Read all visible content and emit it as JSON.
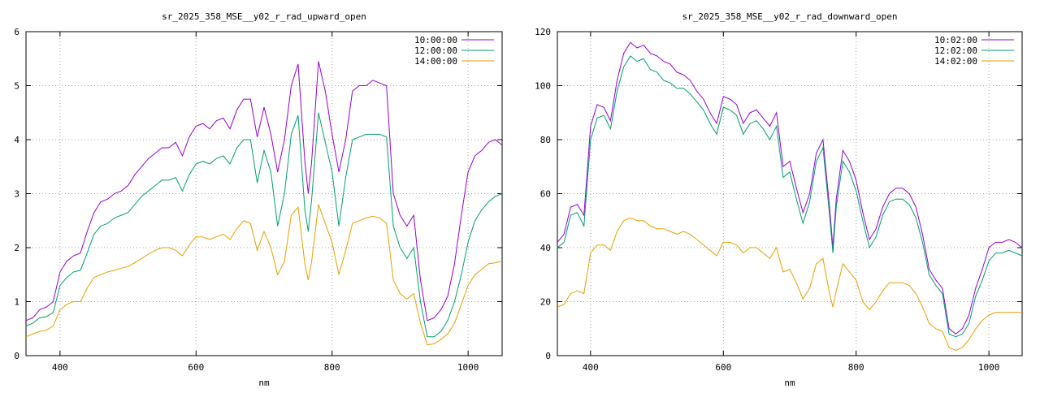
{
  "chart_data": [
    {
      "type": "line",
      "title": "sr_2025_358_MSE__y02_r_rad_upward_open",
      "xlabel": "nm",
      "ylabel": "",
      "xlim": [
        350,
        1050
      ],
      "ylim": [
        0,
        6
      ],
      "xticks": [
        400,
        600,
        800,
        1000
      ],
      "yticks": [
        0,
        1,
        2,
        3,
        4,
        5,
        6
      ],
      "grid": true,
      "legend": "top-right",
      "x": [
        350,
        360,
        370,
        380,
        390,
        400,
        410,
        420,
        430,
        440,
        450,
        460,
        470,
        480,
        490,
        500,
        510,
        520,
        530,
        540,
        550,
        560,
        570,
        580,
        590,
        600,
        610,
        620,
        630,
        640,
        650,
        660,
        670,
        680,
        690,
        700,
        710,
        720,
        730,
        740,
        750,
        760,
        765,
        770,
        780,
        790,
        800,
        810,
        820,
        830,
        840,
        850,
        860,
        870,
        880,
        890,
        900,
        910,
        920,
        930,
        940,
        950,
        960,
        970,
        980,
        990,
        1000,
        1010,
        1020,
        1030,
        1040,
        1050
      ],
      "series": [
        {
          "name": "10:00:00",
          "color": "#9400d3",
          "values": [
            0.65,
            0.7,
            0.85,
            0.9,
            1.0,
            1.55,
            1.75,
            1.85,
            1.9,
            2.3,
            2.65,
            2.85,
            2.9,
            3.0,
            3.05,
            3.15,
            3.35,
            3.5,
            3.65,
            3.75,
            3.85,
            3.85,
            3.95,
            3.7,
            4.05,
            4.25,
            4.3,
            4.2,
            4.35,
            4.4,
            4.2,
            4.55,
            4.75,
            4.75,
            4.05,
            4.6,
            4.1,
            3.4,
            4.0,
            5.0,
            5.4,
            3.6,
            3.0,
            3.6,
            5.45,
            4.9,
            4.1,
            3.4,
            4.0,
            4.9,
            5.0,
            5.0,
            5.1,
            5.05,
            5.0,
            3.0,
            2.6,
            2.4,
            2.6,
            1.4,
            0.65,
            0.7,
            0.85,
            1.1,
            1.7,
            2.6,
            3.4,
            3.7,
            3.8,
            3.95,
            4.0,
            3.9
          ]
        },
        {
          "name": "12:00:00",
          "color": "#009e73",
          "values": [
            0.55,
            0.6,
            0.7,
            0.72,
            0.8,
            1.3,
            1.45,
            1.55,
            1.58,
            1.9,
            2.25,
            2.4,
            2.45,
            2.55,
            2.6,
            2.65,
            2.8,
            2.95,
            3.05,
            3.15,
            3.25,
            3.25,
            3.3,
            3.05,
            3.35,
            3.55,
            3.6,
            3.55,
            3.65,
            3.7,
            3.55,
            3.85,
            4.0,
            4.0,
            3.2,
            3.8,
            3.4,
            2.4,
            3.0,
            4.1,
            4.45,
            2.7,
            2.3,
            2.9,
            4.5,
            3.95,
            3.4,
            2.4,
            3.3,
            4.0,
            4.05,
            4.1,
            4.1,
            4.1,
            4.05,
            2.4,
            2.0,
            1.8,
            2.0,
            1.0,
            0.35,
            0.35,
            0.45,
            0.65,
            1.0,
            1.5,
            2.1,
            2.5,
            2.7,
            2.85,
            2.95,
            3.0
          ]
        },
        {
          "name": "14:00:00",
          "color": "#e69f00",
          "values": [
            0.35,
            0.4,
            0.45,
            0.47,
            0.55,
            0.85,
            0.95,
            1.0,
            1.0,
            1.25,
            1.45,
            1.5,
            1.55,
            1.58,
            1.62,
            1.65,
            1.72,
            1.8,
            1.88,
            1.95,
            2.0,
            2.0,
            1.95,
            1.85,
            2.05,
            2.2,
            2.2,
            2.15,
            2.2,
            2.25,
            2.15,
            2.35,
            2.5,
            2.45,
            1.95,
            2.3,
            2.0,
            1.5,
            1.75,
            2.6,
            2.75,
            1.7,
            1.4,
            1.75,
            2.8,
            2.45,
            2.1,
            1.5,
            1.95,
            2.45,
            2.5,
            2.55,
            2.58,
            2.55,
            2.45,
            1.4,
            1.15,
            1.05,
            1.15,
            0.6,
            0.2,
            0.22,
            0.3,
            0.4,
            0.6,
            0.95,
            1.3,
            1.5,
            1.6,
            1.7,
            1.72,
            1.75
          ]
        }
      ]
    },
    {
      "type": "line",
      "title": "sr_2025_358_MSE__y02_r_rad_downward_open",
      "xlabel": "nm",
      "ylabel": "",
      "xlim": [
        350,
        1050
      ],
      "ylim": [
        0,
        120
      ],
      "xticks": [
        400,
        600,
        800,
        1000
      ],
      "yticks": [
        0,
        20,
        40,
        60,
        80,
        100,
        120
      ],
      "grid": true,
      "legend": "top-right",
      "x": [
        350,
        360,
        370,
        380,
        390,
        400,
        410,
        420,
        430,
        440,
        450,
        460,
        470,
        480,
        490,
        500,
        510,
        520,
        530,
        540,
        550,
        560,
        570,
        580,
        590,
        600,
        610,
        620,
        630,
        640,
        650,
        660,
        670,
        680,
        690,
        700,
        710,
        720,
        730,
        740,
        750,
        760,
        765,
        770,
        780,
        790,
        800,
        810,
        820,
        830,
        840,
        850,
        860,
        870,
        880,
        890,
        900,
        910,
        920,
        930,
        940,
        950,
        960,
        970,
        980,
        990,
        1000,
        1010,
        1020,
        1030,
        1040,
        1050
      ],
      "series": [
        {
          "name": "10:02:00",
          "color": "#9400d3",
          "values": [
            42,
            45,
            55,
            56,
            52,
            85,
            93,
            92,
            87,
            102,
            112,
            116,
            114,
            115,
            112,
            111,
            109,
            108,
            105,
            104,
            102,
            98,
            95,
            90,
            86,
            96,
            95,
            93,
            86,
            90,
            91,
            88,
            85,
            90,
            70,
            72,
            62,
            53,
            60,
            75,
            80,
            55,
            40,
            58,
            76,
            72,
            65,
            53,
            43,
            47,
            55,
            60,
            62,
            62,
            60,
            55,
            45,
            32,
            28,
            25,
            10,
            8,
            10,
            15,
            25,
            32,
            40,
            42,
            42,
            43,
            42,
            40
          ]
        },
        {
          "name": "12:02:00",
          "color": "#009e73",
          "values": [
            40,
            42,
            52,
            53,
            48,
            80,
            88,
            89,
            84,
            98,
            107,
            111,
            109,
            110,
            106,
            105,
            102,
            101,
            99,
            99,
            97,
            94,
            91,
            86,
            82,
            92,
            91,
            89,
            82,
            86,
            87,
            84,
            80,
            85,
            66,
            68,
            58,
            49,
            57,
            72,
            77,
            52,
            38,
            55,
            72,
            68,
            61,
            50,
            40,
            44,
            52,
            57,
            58,
            58,
            56,
            51,
            42,
            30,
            26,
            23,
            8,
            7,
            8,
            12,
            22,
            28,
            35,
            38,
            38,
            39,
            38,
            37
          ]
        },
        {
          "name": "14:02:00",
          "color": "#e69f00",
          "values": [
            18,
            19,
            23,
            24,
            23,
            38,
            41,
            41,
            39,
            46,
            50,
            51,
            50,
            50,
            48,
            47,
            47,
            46,
            45,
            46,
            45,
            43,
            41,
            39,
            37,
            42,
            42,
            41,
            38,
            40,
            40,
            38,
            36,
            40,
            31,
            32,
            27,
            21,
            25,
            34,
            36,
            23,
            18,
            24,
            34,
            31,
            28,
            20,
            17,
            20,
            24,
            27,
            27,
            27,
            26,
            23,
            18,
            12,
            10,
            9,
            3,
            2,
            3,
            6,
            10,
            13,
            15,
            16,
            16,
            16,
            16,
            16
          ]
        }
      ]
    }
  ]
}
